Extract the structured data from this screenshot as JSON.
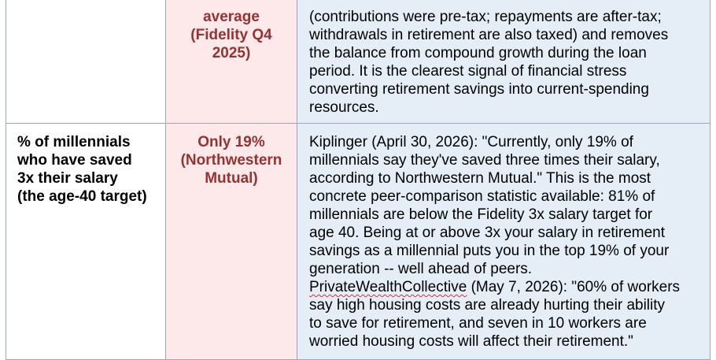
{
  "rows": [
    {
      "label_lines": [],
      "value_lines": [
        "average",
        "(Fidelity Q4",
        "2025)"
      ],
      "notes_lines": [
        "(contributions were pre-tax; repayments are after-tax;",
        "withdrawals in retirement are also taxed) and removes",
        "the balance from compound growth during the loan",
        "period. It is the clearest signal of financial stress",
        "converting retirement savings into current-spending",
        "resources."
      ]
    },
    {
      "label_lines": [
        "% of millennials",
        "who have saved",
        "3x their salary",
        "(the age-40 target)"
      ],
      "value_lines": [
        "Only 19%",
        "(Northwestern",
        "Mutual)"
      ],
      "notes_lines": [
        "Kiplinger (April 30, 2026): \"Currently, only 19% of",
        "millennials say they've saved three times their salary,",
        "according to Northwestern Mutual.\" This is the most",
        "concrete peer-comparison statistic available: 81% of",
        "millennials are below the Fidelity 3x salary target for",
        "age 40. Being at or above 3x your salary in retirement",
        "savings as a millennial puts you in the top 19% of your",
        "generation -- well ahead of peers."
      ],
      "notes_source_name": "PrivateWealthCollective",
      "notes_source_rest": " (May 7, 2026): \"60% of workers",
      "notes_tail_lines": [
        "say high housing costs are already hurting their ability",
        "to save for retirement, and seven in 10 workers are",
        "worried housing costs will affect their retirement.\""
      ]
    }
  ],
  "colors": {
    "value_text": "#963232",
    "value_bg": "#fde9e9",
    "notes_bg": "#e5edf7",
    "border": "#9aa7bf",
    "spelling_squiggle": "#d13438"
  }
}
